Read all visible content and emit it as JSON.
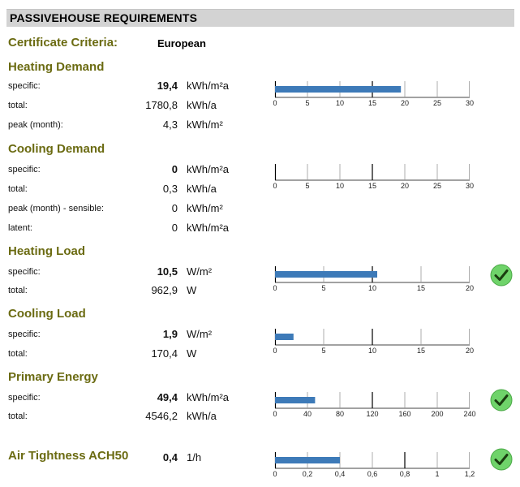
{
  "header": {
    "title": "PASSIVEHOUSE REQUIREMENTS"
  },
  "criteria": {
    "label": "Certificate Criteria:",
    "value": "European"
  },
  "colors": {
    "section_title": "#6b6b12",
    "bar": "#3d7ab8",
    "header_bg": "#d3d3d3",
    "check_fill": "#6fd36a",
    "check_mark": "#1a3d10"
  },
  "sections": [
    {
      "title": "Heating Demand",
      "rows": [
        {
          "label": "specific:",
          "value": "19,4",
          "unit": "kWh/m²a",
          "bold": true
        },
        {
          "label": "total:",
          "value": "1780,8",
          "unit": "kWh/a",
          "bold": false
        },
        {
          "label": "peak (month):",
          "value": "4,3",
          "unit": "kWh/m²",
          "bold": false
        }
      ],
      "gauge": {
        "value": 19.4,
        "min": 0,
        "max": 30,
        "ticks": [
          "0",
          "5",
          "10",
          "15",
          "20",
          "25",
          "30"
        ],
        "limit_tick_index": 3
      },
      "check": false
    },
    {
      "title": "Cooling Demand",
      "rows": [
        {
          "label": "specific:",
          "value": "0",
          "unit": "kWh/m²a",
          "bold": true
        },
        {
          "label": "total:",
          "value": "0,3",
          "unit": "kWh/a",
          "bold": false
        },
        {
          "label": "peak (month) - sensible:",
          "value": "0",
          "unit": "kWh/m²",
          "bold": false
        },
        {
          "label": "latent:",
          "value": "0",
          "unit": "kWh/m²a",
          "bold": false
        }
      ],
      "gauge": {
        "value": 0,
        "min": 0,
        "max": 30,
        "ticks": [
          "0",
          "5",
          "10",
          "15",
          "20",
          "25",
          "30"
        ],
        "limit_tick_index": 3
      },
      "check": false
    },
    {
      "title": "Heating Load",
      "rows": [
        {
          "label": "specific:",
          "value": "10,5",
          "unit": "W/m²",
          "bold": true
        },
        {
          "label": "total:",
          "value": "962,9",
          "unit": "W",
          "bold": false
        }
      ],
      "gauge": {
        "value": 10.5,
        "min": 0,
        "max": 20,
        "ticks": [
          "0",
          "5",
          "10",
          "15",
          "20"
        ],
        "limit_tick_index": 2
      },
      "check": true
    },
    {
      "title": "Cooling Load",
      "rows": [
        {
          "label": "specific:",
          "value": "1,9",
          "unit": "W/m²",
          "bold": true
        },
        {
          "label": "total:",
          "value": "170,4",
          "unit": "W",
          "bold": false
        }
      ],
      "gauge": {
        "value": 1.9,
        "min": 0,
        "max": 20,
        "ticks": [
          "0",
          "5",
          "10",
          "15",
          "20"
        ],
        "limit_tick_index": 2
      },
      "check": false
    },
    {
      "title": "Primary Energy",
      "rows": [
        {
          "label": "specific:",
          "value": "49,4",
          "unit": "kWh/m²a",
          "bold": true
        },
        {
          "label": "total:",
          "value": "4546,2",
          "unit": "kWh/a",
          "bold": false
        }
      ],
      "gauge": {
        "value": 49.4,
        "min": 0,
        "max": 240,
        "ticks": [
          "0",
          "40",
          "80",
          "120",
          "160",
          "200",
          "240"
        ],
        "limit_tick_index": 3
      },
      "check": true
    },
    {
      "title": "Air Tightness ACH50",
      "rows": [
        {
          "label": "",
          "value": "0,4",
          "unit": "1/h",
          "bold": true
        }
      ],
      "gauge": {
        "value": 0.4,
        "min": 0,
        "max": 1.2,
        "ticks": [
          "0",
          "0,2",
          "0,4",
          "0,6",
          "0,8",
          "1",
          "1,2"
        ],
        "limit_tick_index": 4
      },
      "check": true
    }
  ]
}
